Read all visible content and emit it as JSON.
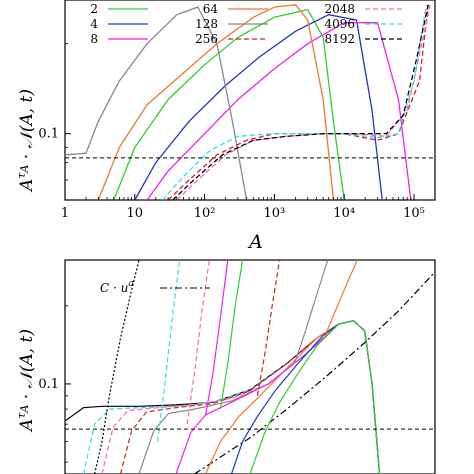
{
  "chart_data": [
    {
      "type": "line",
      "xlabel": "A",
      "ylabel": "A^{τ_A} · 𝒩(A,t)",
      "xscale": "log",
      "yscale": "log",
      "xlim": [
        1,
        200000
      ],
      "ylim": [
        0.06,
        0.28
      ],
      "x_ticks": [
        "1",
        "10",
        "10²",
        "10³",
        "10⁴",
        "10⁵"
      ],
      "y_ticks": [
        "0.1"
      ],
      "legend_placement": "top",
      "reference_line_y": 0.083,
      "series": [
        {
          "name": "2",
          "color": "#33cc33",
          "dash": "solid",
          "x": [
            5,
            10,
            30,
            100,
            300,
            1000,
            3000,
            5000,
            7000,
            10000
          ],
          "y": [
            0.06,
            0.09,
            0.13,
            0.17,
            0.21,
            0.245,
            0.26,
            0.21,
            0.11,
            0.06
          ]
        },
        {
          "name": "4",
          "color": "#2233cc",
          "dash": "solid",
          "x": [
            10,
            20,
            60,
            200,
            600,
            2000,
            6000,
            15000,
            25000,
            35000
          ],
          "y": [
            0.06,
            0.08,
            0.11,
            0.145,
            0.18,
            0.22,
            0.25,
            0.24,
            0.12,
            0.06
          ]
        },
        {
          "name": "8",
          "color": "#ee22ee",
          "dash": "solid",
          "x": [
            15,
            30,
            100,
            300,
            1000,
            3000,
            10000,
            30000,
            60000,
            90000
          ],
          "y": [
            0.06,
            0.075,
            0.1,
            0.13,
            0.165,
            0.2,
            0.235,
            0.235,
            0.13,
            0.06
          ]
        },
        {
          "name": "64",
          "color": "#ee7733",
          "dash": "solid",
          "x": [
            3,
            6,
            15,
            50,
            150,
            500,
            1000,
            2000,
            3000,
            5000,
            7000
          ],
          "y": [
            0.06,
            0.09,
            0.125,
            0.16,
            0.2,
            0.245,
            0.265,
            0.27,
            0.24,
            0.13,
            0.06
          ]
        },
        {
          "name": "128",
          "color": "#888888",
          "dash": "solid",
          "x": [
            1,
            2,
            3,
            6,
            15,
            40,
            80,
            150,
            250,
            400
          ],
          "y": [
            0.085,
            0.086,
            0.11,
            0.15,
            0.2,
            0.25,
            0.265,
            0.2,
            0.11,
            0.06
          ]
        },
        {
          "name": "256",
          "color": "#cc2222",
          "dash": "dashed",
          "x": [
            30,
            60,
            150,
            400,
            1000,
            3000,
            10000,
            30000,
            60000,
            120000,
            160000
          ],
          "y": [
            0.06,
            0.07,
            0.085,
            0.095,
            0.1,
            0.1,
            0.1,
            0.095,
            0.1,
            0.15,
            0.27
          ]
        },
        {
          "name": "2048",
          "color": "#ff66bb",
          "dash": "dashed",
          "x": [
            40,
            80,
            200,
            500,
            1500,
            5000,
            15000,
            40000,
            80000,
            130000,
            170000
          ],
          "y": [
            0.06,
            0.07,
            0.085,
            0.095,
            0.098,
            0.1,
            0.1,
            0.098,
            0.12,
            0.2,
            0.27
          ]
        },
        {
          "name": "4096",
          "color": "#33dddd",
          "dash": "dashed",
          "x": [
            25,
            50,
            120,
            300,
            1000,
            3000,
            10000,
            30000,
            60000,
            100000,
            150000
          ],
          "y": [
            0.06,
            0.072,
            0.088,
            0.098,
            0.1,
            0.1,
            0.1,
            0.097,
            0.1,
            0.15,
            0.27
          ]
        },
        {
          "name": "8192",
          "color": "#000000",
          "dash": "dashed",
          "x": [
            35,
            70,
            180,
            500,
            1500,
            5000,
            15000,
            40000,
            70000,
            110000,
            160000
          ],
          "y": [
            0.06,
            0.07,
            0.085,
            0.095,
            0.098,
            0.1,
            0.1,
            0.1,
            0.115,
            0.18,
            0.27
          ]
        }
      ]
    },
    {
      "type": "line",
      "xlabel": "",
      "ylabel": "A^{τ_A} · 𝒩(A,t)",
      "yscale": "log",
      "xlim": [
        0,
        1
      ],
      "ylim": [
        0.045,
        0.3
      ],
      "y_ticks": [
        "0.1"
      ],
      "legend_placement": "top-left",
      "legend": [
        {
          "label": "C · u^a",
          "style": "dash-dot",
          "color": "#000000"
        }
      ],
      "reference_line_y": 0.067,
      "series": [
        {
          "name": "C · u^a",
          "color": "#000000",
          "dash": "dashdot",
          "x": [
            0.35,
            0.5,
            0.6,
            0.7,
            0.8,
            0.9,
            1.0
          ],
          "y": [
            0.045,
            0.062,
            0.08,
            0.105,
            0.14,
            0.19,
            0.27
          ]
        },
        {
          "name": "black",
          "color": "#000000",
          "dash": "solid",
          "x": [
            0.0,
            0.05,
            0.1,
            0.2,
            0.3,
            0.4,
            0.5,
            0.6,
            0.68,
            0.74,
            0.78,
            0.81,
            0.83,
            0.85
          ],
          "y": [
            0.072,
            0.081,
            0.082,
            0.082,
            0.083,
            0.085,
            0.095,
            0.12,
            0.15,
            0.17,
            0.175,
            0.16,
            0.1,
            0.045
          ]
        },
        {
          "name": "cyan",
          "color": "#33dddd",
          "dash": "dashed",
          "x": [
            0.05,
            0.08,
            0.12,
            0.2,
            0.3,
            0.4,
            0.5,
            0.6,
            0.68,
            0.74,
            0.78,
            0.81,
            0.83,
            0.85
          ],
          "y": [
            0.045,
            0.07,
            0.08,
            0.081,
            0.082,
            0.085,
            0.095,
            0.12,
            0.15,
            0.17,
            0.175,
            0.16,
            0.1,
            0.045
          ]
        },
        {
          "name": "pink",
          "color": "#ff66bb",
          "dash": "dashed",
          "x": [
            0.1,
            0.13,
            0.17,
            0.25,
            0.35,
            0.45,
            0.55,
            0.65,
            0.74,
            0.78,
            0.81,
            0.83,
            0.85
          ],
          "y": [
            0.045,
            0.068,
            0.079,
            0.081,
            0.083,
            0.088,
            0.1,
            0.13,
            0.17,
            0.175,
            0.16,
            0.1,
            0.045
          ]
        },
        {
          "name": "red dashed",
          "color": "#cc2222",
          "dash": "dashed",
          "x": [
            0.15,
            0.18,
            0.22,
            0.3,
            0.4,
            0.5,
            0.6,
            0.68,
            0.74,
            0.78,
            0.81,
            0.83,
            0.85
          ],
          "y": [
            0.045,
            0.066,
            0.078,
            0.081,
            0.084,
            0.094,
            0.12,
            0.15,
            0.17,
            0.175,
            0.16,
            0.1,
            0.045
          ]
        },
        {
          "name": "gray",
          "color": "#888888",
          "dash": "solid",
          "x": [
            0.2,
            0.24,
            0.28,
            0.35,
            0.45,
            0.55,
            0.65,
            0.74,
            0.78,
            0.81,
            0.83,
            0.85
          ],
          "y": [
            0.045,
            0.066,
            0.077,
            0.08,
            0.086,
            0.1,
            0.13,
            0.17,
            0.175,
            0.16,
            0.1,
            0.045
          ]
        },
        {
          "name": "orange",
          "color": "#ee7733",
          "dash": "solid",
          "x": [
            0.38,
            0.42,
            0.47,
            0.52,
            0.6,
            0.68,
            0.74,
            0.78,
            0.81,
            0.83,
            0.85
          ],
          "y": [
            0.045,
            0.06,
            0.075,
            0.088,
            0.115,
            0.15,
            0.17,
            0.175,
            0.16,
            0.1,
            0.045
          ]
        },
        {
          "name": "magenta",
          "color": "#ee22ee",
          "dash": "solid",
          "x": [
            0.3,
            0.34,
            0.38,
            0.45,
            0.55,
            0.65,
            0.74,
            0.78,
            0.81,
            0.83,
            0.85
          ],
          "y": [
            0.045,
            0.065,
            0.076,
            0.085,
            0.1,
            0.13,
            0.17,
            0.175,
            0.16,
            0.1,
            0.045
          ]
        },
        {
          "name": "blue",
          "color": "#2233cc",
          "dash": "solid",
          "x": [
            0.45,
            0.48,
            0.52,
            0.57,
            0.63,
            0.7,
            0.74,
            0.78,
            0.81,
            0.83,
            0.85
          ],
          "y": [
            0.045,
            0.06,
            0.075,
            0.095,
            0.12,
            0.155,
            0.17,
            0.175,
            0.16,
            0.1,
            0.045
          ]
        },
        {
          "name": "green",
          "color": "#33cc33",
          "dash": "solid",
          "x": [
            0.5,
            0.54,
            0.58,
            0.63,
            0.68,
            0.74,
            0.78,
            0.81,
            0.83,
            0.85
          ],
          "y": [
            0.045,
            0.065,
            0.085,
            0.11,
            0.14,
            0.17,
            0.175,
            0.16,
            0.1,
            0.045
          ]
        },
        {
          "name": "steep black",
          "color": "#000000",
          "dash": "dotted",
          "x": [
            0.08,
            0.1,
            0.12,
            0.15,
            0.18,
            0.2
          ],
          "y": [
            0.045,
            0.06,
            0.09,
            0.15,
            0.23,
            0.3
          ]
        },
        {
          "name": "steep cyan",
          "color": "#33dddd",
          "dash": "dashed",
          "x": [
            0.25,
            0.27,
            0.29,
            0.31
          ],
          "y": [
            0.06,
            0.1,
            0.18,
            0.3
          ]
        },
        {
          "name": "steep pink",
          "color": "#ff66bb",
          "dash": "dashed",
          "x": [
            0.33,
            0.35,
            0.37,
            0.39
          ],
          "y": [
            0.07,
            0.11,
            0.19,
            0.3
          ]
        },
        {
          "name": "steep magenta",
          "color": "#ee22ee",
          "dash": "solid",
          "x": [
            0.38,
            0.4,
            0.42,
            0.44
          ],
          "y": [
            0.076,
            0.11,
            0.18,
            0.3
          ]
        },
        {
          "name": "steep green",
          "color": "#33cc33",
          "dash": "solid",
          "x": [
            0.42,
            0.44,
            0.46,
            0.48
          ],
          "y": [
            0.08,
            0.12,
            0.2,
            0.3
          ]
        },
        {
          "name": "steep red",
          "color": "#cc2222",
          "dash": "dashed",
          "x": [
            0.52,
            0.54,
            0.56,
            0.58
          ],
          "y": [
            0.09,
            0.13,
            0.2,
            0.3
          ]
        },
        {
          "name": "steep gray",
          "color": "#888888",
          "dash": "solid",
          "x": [
            0.62,
            0.65,
            0.68,
            0.71
          ],
          "y": [
            0.12,
            0.16,
            0.22,
            0.3
          ]
        },
        {
          "name": "steep orange",
          "color": "#ee7733",
          "dash": "solid",
          "x": [
            0.7,
            0.73,
            0.76,
            0.79
          ],
          "y": [
            0.15,
            0.19,
            0.24,
            0.3
          ]
        }
      ]
    }
  ],
  "legend_top": {
    "col1": [
      "2",
      "4",
      "8"
    ],
    "col2": [
      "64",
      "128",
      "256"
    ],
    "col3": [
      "2048",
      "4096",
      "8192"
    ]
  },
  "legend_bottom": {
    "label": "C · u^a"
  }
}
